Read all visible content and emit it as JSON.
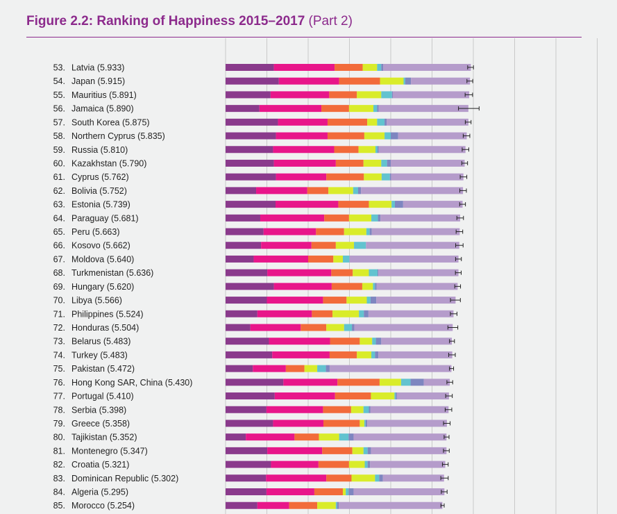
{
  "figure": {
    "title": "Figure 2.2: Ranking of Happiness 2015–2017",
    "part": "(Part 2)"
  },
  "colors": {
    "title": "#8c2a8c",
    "segments": [
      "#8a3a8c",
      "#e8168a",
      "#f26b3a",
      "#d9ec2a",
      "#62c3cf",
      "#7e86c0",
      "#b59ccb"
    ],
    "error_bar": "#222222",
    "grid": "#c9c9c9"
  },
  "chart_data": {
    "type": "bar",
    "orientation": "horizontal",
    "stacked": true,
    "xlim": [
      0,
      9
    ],
    "grid": true,
    "legend": "none",
    "rows": [
      {
        "rank": "53.",
        "country": "Latvia (5.933)",
        "total": 5.933,
        "segments": [
          1.17,
          1.47,
          0.68,
          0.35,
          0.1,
          0.05,
          2.12
        ],
        "ci": 0.07
      },
      {
        "rank": "54.",
        "country": "Japan (5.915)",
        "total": 5.915,
        "segments": [
          1.29,
          1.46,
          0.99,
          0.57,
          0.04,
          0.14,
          1.43
        ],
        "ci": 0.07
      },
      {
        "rank": "55.",
        "country": "Mauritius (5.891)",
        "total": 5.891,
        "segments": [
          1.09,
          1.42,
          0.67,
          0.59,
          0.26,
          0.02,
          1.85
        ],
        "ci": 0.09
      },
      {
        "rank": "56.",
        "country": "Jamaica (5.890)",
        "total": 5.89,
        "segments": [
          0.82,
          1.5,
          0.67,
          0.59,
          0.09,
          0.04,
          2.17
        ],
        "ci": 0.25
      },
      {
        "rank": "57.",
        "country": "South Korea (5.875)",
        "total": 5.875,
        "segments": [
          1.27,
          1.2,
          0.96,
          0.24,
          0.18,
          0.05,
          1.98
        ],
        "ci": 0.07
      },
      {
        "rank": "58.",
        "country": "Northern Cyprus (5.835)",
        "total": 5.835,
        "segments": [
          1.22,
          1.25,
          0.89,
          0.49,
          0.15,
          0.18,
          1.66
        ],
        "ci": 0.08
      },
      {
        "rank": "59.",
        "country": "Russia (5.810)",
        "total": 5.81,
        "segments": [
          1.15,
          1.48,
          0.59,
          0.41,
          0.05,
          0.03,
          2.1
        ],
        "ci": 0.08
      },
      {
        "rank": "60.",
        "country": "Kazakhstan (5.790)",
        "total": 5.79,
        "segments": [
          1.17,
          1.5,
          0.67,
          0.43,
          0.14,
          0.09,
          1.79
        ],
        "ci": 0.07
      },
      {
        "rank": "61.",
        "country": "Cyprus (5.762)",
        "total": 5.762,
        "segments": [
          1.22,
          1.22,
          0.91,
          0.43,
          0.2,
          0.03,
          1.75
        ],
        "ci": 0.08
      },
      {
        "rank": "62.",
        "country": "Bolivia (5.752)",
        "total": 5.752,
        "segments": [
          0.74,
          1.24,
          0.51,
          0.6,
          0.12,
          0.07,
          2.47
        ],
        "ci": 0.08
      },
      {
        "rank": "63.",
        "country": "Estonia (5.739)",
        "total": 5.739,
        "segments": [
          1.21,
          1.52,
          0.74,
          0.55,
          0.08,
          0.2,
          1.44
        ],
        "ci": 0.07
      },
      {
        "rank": "64.",
        "country": "Paraguay (5.681)",
        "total": 5.681,
        "segments": [
          0.84,
          1.55,
          0.6,
          0.54,
          0.16,
          0.06,
          1.93
        ],
        "ci": 0.08
      },
      {
        "rank": "65.",
        "country": "Peru (5.663)",
        "total": 5.663,
        "segments": [
          0.92,
          1.27,
          0.68,
          0.54,
          0.08,
          0.05,
          2.13
        ],
        "ci": 0.08
      },
      {
        "rank": "66.",
        "country": "Kosovo (5.662)",
        "total": 5.662,
        "segments": [
          0.86,
          1.22,
          0.59,
          0.44,
          0.29,
          0.0,
          2.26
        ],
        "ci": 0.09
      },
      {
        "rank": "67.",
        "country": "Moldova (5.640)",
        "total": 5.64,
        "segments": [
          0.68,
          1.32,
          0.61,
          0.23,
          0.16,
          0.0,
          2.64
        ],
        "ci": 0.07
      },
      {
        "rank": "68.",
        "country": "Turkmenistan (5.636)",
        "total": 5.636,
        "segments": [
          1.01,
          1.55,
          0.52,
          0.39,
          0.21,
          0.02,
          1.94
        ],
        "ci": 0.07
      },
      {
        "rank": "69.",
        "country": "Hungary (5.620)",
        "total": 5.62,
        "segments": [
          1.17,
          1.4,
          0.74,
          0.26,
          0.05,
          0.04,
          1.96
        ],
        "ci": 0.07
      },
      {
        "rank": "70.",
        "country": "Libya (5.566)",
        "total": 5.566,
        "segments": [
          1.0,
          1.36,
          0.57,
          0.49,
          0.09,
          0.14,
          1.92
        ],
        "ci": 0.12
      },
      {
        "rank": "71.",
        "country": "Philippines (5.524)",
        "total": 5.524,
        "segments": [
          0.77,
          1.32,
          0.5,
          0.64,
          0.12,
          0.11,
          2.06
        ],
        "ci": 0.08
      },
      {
        "rank": "72.",
        "country": "Honduras (5.504)",
        "total": 5.504,
        "segments": [
          0.6,
          1.22,
          0.62,
          0.43,
          0.19,
          0.06,
          2.38
        ],
        "ci": 0.12
      },
      {
        "rank": "73.",
        "country": "Belarus (5.483)",
        "total": 5.483,
        "segments": [
          1.05,
          1.48,
          0.72,
          0.3,
          0.09,
          0.13,
          1.71
        ],
        "ci": 0.06
      },
      {
        "rank": "74.",
        "country": "Turkey (5.483)",
        "total": 5.483,
        "segments": [
          1.13,
          1.39,
          0.66,
          0.35,
          0.09,
          0.08,
          1.79
        ],
        "ci": 0.08
      },
      {
        "rank": "75.",
        "country": "Pakistan (5.472)",
        "total": 5.472,
        "segments": [
          0.66,
          0.8,
          0.45,
          0.31,
          0.21,
          0.09,
          2.95
        ],
        "ci": 0.05
      },
      {
        "rank": "76.",
        "country": "Hong Kong SAR, China (5.430)",
        "total": 5.43,
        "segments": [
          1.4,
          1.31,
          1.02,
          0.52,
          0.23,
          0.32,
          0.63
        ],
        "ci": 0.07
      },
      {
        "rank": "77.",
        "country": "Portugal (5.410)",
        "total": 5.41,
        "segments": [
          1.19,
          1.46,
          0.87,
          0.57,
          0.03,
          0.03,
          1.26
        ],
        "ci": 0.08
      },
      {
        "rank": "78.",
        "country": "Serbia (5.398)",
        "total": 5.398,
        "segments": [
          0.99,
          1.37,
          0.68,
          0.3,
          0.13,
          0.04,
          1.89
        ],
        "ci": 0.08
      },
      {
        "rank": "79.",
        "country": "Greece (5.358)",
        "total": 5.358,
        "segments": [
          1.15,
          1.22,
          0.88,
          0.11,
          0.03,
          0.04,
          1.93
        ],
        "ci": 0.08
      },
      {
        "rank": "80.",
        "country": "Tajikistan (5.352)",
        "total": 5.352,
        "segments": [
          0.49,
          1.18,
          0.59,
          0.49,
          0.23,
          0.12,
          2.25
        ],
        "ci": 0.06
      },
      {
        "rank": "81.",
        "country": "Montenegro (5.347)",
        "total": 5.347,
        "segments": [
          1.01,
          1.33,
          0.73,
          0.27,
          0.1,
          0.08,
          1.83
        ],
        "ci": 0.07
      },
      {
        "rank": "82.",
        "country": "Croatia (5.321)",
        "total": 5.321,
        "segments": [
          1.1,
          1.15,
          0.74,
          0.38,
          0.07,
          0.06,
          1.82
        ],
        "ci": 0.07
      },
      {
        "rank": "83.",
        "country": "Dominican Republic (5.302)",
        "total": 5.302,
        "segments": [
          0.98,
          1.46,
          0.61,
          0.57,
          0.1,
          0.09,
          1.48
        ],
        "ci": 0.09
      },
      {
        "rank": "84.",
        "country": "Algeria (5.295)",
        "total": 5.295,
        "segments": [
          0.99,
          1.16,
          0.69,
          0.07,
          0.07,
          0.12,
          2.2
        ],
        "ci": 0.07
      },
      {
        "rank": "85.",
        "country": "Morocco (5.254)",
        "total": 5.254,
        "segments": [
          0.77,
          0.77,
          0.68,
          0.45,
          0.03,
          0.04,
          2.51
        ],
        "ci": 0.04
      }
    ]
  }
}
